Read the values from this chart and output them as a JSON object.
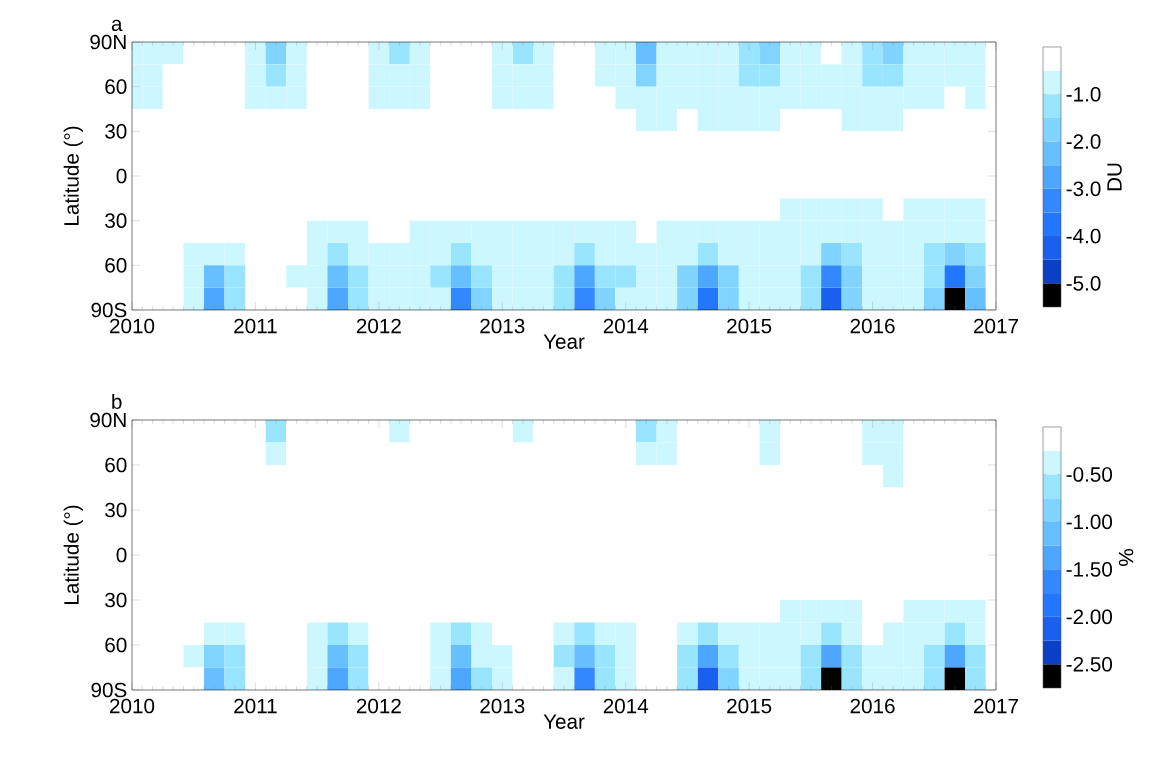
{
  "chart_data": [
    {
      "type": "heatmap",
      "title": "a",
      "xlabel": "Year",
      "ylabel": "Latitude (°)",
      "clabel": "DU",
      "x": [
        2010,
        2010.167,
        2010.333,
        2010.5,
        2010.667,
        2010.833,
        2011,
        2011.167,
        2011.333,
        2011.5,
        2011.667,
        2011.833,
        2012,
        2012.167,
        2012.333,
        2012.5,
        2012.667,
        2012.833,
        2013,
        2013.167,
        2013.333,
        2013.5,
        2013.667,
        2013.833,
        2014,
        2014.167,
        2014.333,
        2014.5,
        2014.667,
        2014.833,
        2015,
        2015.167,
        2015.333,
        2015.5,
        2015.667,
        2015.833,
        2016,
        2016.167,
        2016.333,
        2016.5,
        2016.667,
        2016.833
      ],
      "y": [
        82.5,
        67.5,
        52.5,
        37.5,
        22.5,
        7.5,
        -7.5,
        -22.5,
        -37.5,
        -52.5,
        -67.5,
        -82.5
      ],
      "cells": [
        [
          -0.75,
          -0.75,
          -0.75,
          -0.25,
          -0.25,
          -0.25,
          -0.75,
          -1.75,
          -0.75,
          -0.25,
          -0.25,
          -0.25,
          -0.75,
          -1.25,
          -0.75,
          -0.25,
          -0.25,
          -0.25,
          -0.75,
          -1.25,
          -0.75,
          -0.25,
          -0.25,
          -0.75,
          -0.75,
          -2.25,
          -0.75,
          -0.75,
          -0.75,
          -0.75,
          -1.25,
          -1.75,
          -0.75,
          -0.75,
          -0.25,
          -0.75,
          -1.25,
          -1.75,
          -0.75,
          -0.75,
          -0.75,
          -0.75
        ],
        [
          -0.75,
          -0.75,
          -0.25,
          -0.25,
          -0.25,
          -0.25,
          -0.75,
          -1.25,
          -0.75,
          -0.25,
          -0.25,
          -0.25,
          -0.75,
          -0.75,
          -0.75,
          -0.25,
          -0.25,
          -0.25,
          -0.75,
          -0.75,
          -0.75,
          -0.25,
          -0.25,
          -0.75,
          -0.75,
          -1.75,
          -0.75,
          -0.75,
          -0.75,
          -0.75,
          -1.25,
          -1.25,
          -0.75,
          -0.75,
          -0.75,
          -0.75,
          -1.25,
          -1.25,
          -0.75,
          -0.75,
          -0.75,
          -0.75
        ],
        [
          -0.75,
          -0.75,
          -0.25,
          -0.25,
          -0.25,
          -0.25,
          -0.75,
          -0.75,
          -0.75,
          -0.25,
          -0.25,
          -0.25,
          -0.75,
          -0.75,
          -0.75,
          -0.25,
          -0.25,
          -0.25,
          -0.75,
          -0.75,
          -0.75,
          -0.25,
          -0.25,
          -0.25,
          -0.75,
          -0.75,
          -0.75,
          -0.75,
          -0.75,
          -0.75,
          -0.75,
          -0.75,
          -0.75,
          -0.75,
          -0.75,
          -0.75,
          -0.75,
          -0.75,
          -0.75,
          -0.75,
          -0.25,
          -0.75
        ],
        [
          -0.25,
          -0.25,
          -0.25,
          -0.25,
          -0.25,
          -0.25,
          -0.25,
          -0.25,
          -0.25,
          -0.25,
          -0.25,
          -0.25,
          -0.25,
          -0.25,
          -0.25,
          -0.25,
          -0.25,
          -0.25,
          -0.25,
          -0.25,
          -0.25,
          -0.25,
          -0.25,
          -0.25,
          -0.25,
          -0.75,
          -0.75,
          -0.25,
          -0.75,
          -0.75,
          -0.75,
          -0.75,
          -0.25,
          -0.25,
          -0.25,
          -0.75,
          -0.75,
          -0.75,
          -0.25,
          -0.25,
          -0.25,
          -0.25
        ],
        [
          -0.25,
          -0.25,
          -0.25,
          -0.25,
          -0.25,
          -0.25,
          -0.25,
          -0.25,
          -0.25,
          -0.25,
          -0.25,
          -0.25,
          -0.25,
          -0.25,
          -0.25,
          -0.25,
          -0.25,
          -0.25,
          -0.25,
          -0.25,
          -0.25,
          -0.25,
          -0.25,
          -0.25,
          -0.25,
          -0.25,
          -0.25,
          -0.25,
          -0.25,
          -0.25,
          -0.25,
          -0.25,
          -0.25,
          -0.25,
          -0.25,
          -0.25,
          -0.25,
          -0.25,
          -0.25,
          -0.25,
          -0.25,
          -0.25
        ],
        [
          -0.25,
          -0.25,
          -0.25,
          -0.25,
          -0.25,
          -0.25,
          -0.25,
          -0.25,
          -0.25,
          -0.25,
          -0.25,
          -0.25,
          -0.25,
          -0.25,
          -0.25,
          -0.25,
          -0.25,
          -0.25,
          -0.25,
          -0.25,
          -0.25,
          -0.25,
          -0.25,
          -0.25,
          -0.25,
          -0.25,
          -0.25,
          -0.25,
          -0.25,
          -0.25,
          -0.25,
          -0.25,
          -0.25,
          -0.25,
          -0.25,
          -0.25,
          -0.25,
          -0.25,
          -0.25,
          -0.25,
          -0.25,
          -0.25
        ],
        [
          -0.25,
          -0.25,
          -0.25,
          -0.25,
          -0.25,
          -0.25,
          -0.25,
          -0.25,
          -0.25,
          -0.25,
          -0.25,
          -0.25,
          -0.25,
          -0.25,
          -0.25,
          -0.25,
          -0.25,
          -0.25,
          -0.25,
          -0.25,
          -0.25,
          -0.25,
          -0.25,
          -0.25,
          -0.25,
          -0.25,
          -0.25,
          -0.25,
          -0.25,
          -0.25,
          -0.25,
          -0.25,
          -0.25,
          -0.25,
          -0.25,
          -0.25,
          -0.25,
          -0.25,
          -0.25,
          -0.25,
          -0.25,
          -0.25
        ],
        [
          -0.25,
          -0.25,
          -0.25,
          -0.25,
          -0.25,
          -0.25,
          -0.25,
          -0.25,
          -0.25,
          -0.25,
          -0.25,
          -0.25,
          -0.25,
          -0.25,
          -0.25,
          -0.25,
          -0.25,
          -0.25,
          -0.25,
          -0.25,
          -0.25,
          -0.25,
          -0.25,
          -0.25,
          -0.25,
          -0.25,
          -0.25,
          -0.25,
          -0.25,
          -0.25,
          -0.25,
          -0.25,
          -0.75,
          -0.75,
          -0.75,
          -0.75,
          -0.75,
          -0.25,
          -0.75,
          -0.75,
          -0.75,
          -0.75
        ],
        [
          -0.25,
          -0.25,
          -0.25,
          -0.25,
          -0.25,
          -0.25,
          -0.25,
          -0.25,
          -0.25,
          -0.75,
          -0.75,
          -0.75,
          -0.25,
          -0.25,
          -0.75,
          -0.75,
          -0.75,
          -0.75,
          -0.75,
          -0.75,
          -0.75,
          -0.75,
          -0.75,
          -0.75,
          -0.75,
          -0.25,
          -0.75,
          -0.75,
          -0.75,
          -0.75,
          -0.75,
          -0.75,
          -0.75,
          -0.75,
          -0.75,
          -0.75,
          -0.75,
          -0.75,
          -0.75,
          -0.75,
          -0.75,
          -0.75
        ],
        [
          -0.25,
          -0.25,
          -0.25,
          -0.75,
          -0.75,
          -0.75,
          -0.25,
          -0.25,
          -0.25,
          -0.75,
          -1.25,
          -0.75,
          -0.75,
          -0.75,
          -0.75,
          -0.75,
          -1.25,
          -0.75,
          -0.75,
          -0.75,
          -0.75,
          -0.75,
          -1.25,
          -0.75,
          -0.75,
          -0.75,
          -0.75,
          -0.75,
          -1.25,
          -0.75,
          -0.75,
          -0.75,
          -0.75,
          -0.75,
          -1.75,
          -1.25,
          -0.75,
          -0.75,
          -0.75,
          -1.25,
          -1.75,
          -1.25
        ],
        [
          -0.25,
          -0.25,
          -0.25,
          -0.75,
          -2.25,
          -1.25,
          -0.25,
          -0.25,
          -0.75,
          -0.75,
          -2.25,
          -1.25,
          -0.75,
          -0.75,
          -0.75,
          -1.25,
          -2.25,
          -1.25,
          -0.75,
          -0.75,
          -0.75,
          -1.25,
          -2.75,
          -1.25,
          -1.25,
          -0.75,
          -0.75,
          -1.75,
          -2.75,
          -1.75,
          -0.75,
          -0.75,
          -0.75,
          -1.25,
          -3.25,
          -1.75,
          -0.75,
          -0.75,
          -0.75,
          -1.25,
          -3.75,
          -1.75
        ],
        [
          -0.25,
          -0.25,
          -0.25,
          -0.75,
          -2.75,
          -1.25,
          -0.25,
          -0.25,
          -0.25,
          -0.75,
          -2.75,
          -1.25,
          -0.75,
          -0.75,
          -0.75,
          -0.75,
          -3.25,
          -1.75,
          -0.75,
          -0.75,
          -0.75,
          -1.25,
          -3.25,
          -1.75,
          -0.75,
          -0.75,
          -0.75,
          -1.75,
          -3.75,
          -1.75,
          -0.75,
          -0.75,
          -0.75,
          -1.25,
          -4.25,
          -1.75,
          -0.75,
          -0.75,
          -0.75,
          -1.75,
          -5.2,
          -2.25
        ]
      ],
      "xlim": [
        2010,
        2017
      ],
      "xticks": [
        2010,
        2011,
        2012,
        2013,
        2014,
        2015,
        2016,
        2017
      ],
      "ylim": [
        -90,
        90
      ],
      "yticks": [
        {
          "value": -90,
          "label": "90S"
        },
        {
          "value": -60,
          "label": "60"
        },
        {
          "value": -30,
          "label": "30"
        },
        0,
        30,
        60,
        {
          "value": 90,
          "label": "90N"
        }
      ],
      "clim": [
        -5.5,
        0
      ],
      "cticks": [
        {
          "value": -5,
          "label": "-5.0"
        },
        {
          "value": -4,
          "label": "-4.0"
        },
        {
          "value": -3,
          "label": "-3.0"
        },
        {
          "value": -2,
          "label": "-2.0"
        },
        {
          "value": -1,
          "label": "-1.0"
        }
      ]
    },
    {
      "type": "heatmap",
      "title": "b",
      "xlabel": "Year",
      "ylabel": "Latitude (°)",
      "clabel": "%",
      "x": [
        2010,
        2010.167,
        2010.333,
        2010.5,
        2010.667,
        2010.833,
        2011,
        2011.167,
        2011.333,
        2011.5,
        2011.667,
        2011.833,
        2012,
        2012.167,
        2012.333,
        2012.5,
        2012.667,
        2012.833,
        2013,
        2013.167,
        2013.333,
        2013.5,
        2013.667,
        2013.833,
        2014,
        2014.167,
        2014.333,
        2014.5,
        2014.667,
        2014.833,
        2015,
        2015.167,
        2015.333,
        2015.5,
        2015.667,
        2015.833,
        2016,
        2016.167,
        2016.333,
        2016.5,
        2016.667,
        2016.833
      ],
      "y": [
        82.5,
        67.5,
        52.5,
        37.5,
        22.5,
        7.5,
        -7.5,
        -22.5,
        -37.5,
        -52.5,
        -67.5,
        -82.5
      ],
      "cells": [
        [
          -0.125,
          -0.125,
          -0.125,
          -0.125,
          -0.125,
          -0.125,
          -0.125,
          -0.625,
          -0.125,
          -0.125,
          -0.125,
          -0.125,
          -0.125,
          -0.375,
          -0.125,
          -0.125,
          -0.125,
          -0.125,
          -0.125,
          -0.375,
          -0.125,
          -0.125,
          -0.125,
          -0.125,
          -0.125,
          -0.625,
          -0.375,
          -0.125,
          -0.125,
          -0.125,
          -0.125,
          -0.375,
          -0.125,
          -0.125,
          -0.125,
          -0.125,
          -0.375,
          -0.375,
          -0.125,
          -0.125,
          -0.125,
          -0.125
        ],
        [
          -0.125,
          -0.125,
          -0.125,
          -0.125,
          -0.125,
          -0.125,
          -0.125,
          -0.375,
          -0.125,
          -0.125,
          -0.125,
          -0.125,
          -0.125,
          -0.125,
          -0.125,
          -0.125,
          -0.125,
          -0.125,
          -0.125,
          -0.125,
          -0.125,
          -0.125,
          -0.125,
          -0.125,
          -0.125,
          -0.375,
          -0.375,
          -0.125,
          -0.125,
          -0.125,
          -0.125,
          -0.375,
          -0.125,
          -0.125,
          -0.125,
          -0.125,
          -0.375,
          -0.375,
          -0.125,
          -0.125,
          -0.125,
          -0.125
        ],
        [
          -0.125,
          -0.125,
          -0.125,
          -0.125,
          -0.125,
          -0.125,
          -0.125,
          -0.125,
          -0.125,
          -0.125,
          -0.125,
          -0.125,
          -0.125,
          -0.125,
          -0.125,
          -0.125,
          -0.125,
          -0.125,
          -0.125,
          -0.125,
          -0.125,
          -0.125,
          -0.125,
          -0.125,
          -0.125,
          -0.125,
          -0.125,
          -0.125,
          -0.125,
          -0.125,
          -0.125,
          -0.125,
          -0.125,
          -0.125,
          -0.125,
          -0.125,
          -0.125,
          -0.375,
          -0.125,
          -0.125,
          -0.125,
          -0.125
        ],
        [
          -0.125,
          -0.125,
          -0.125,
          -0.125,
          -0.125,
          -0.125,
          -0.125,
          -0.125,
          -0.125,
          -0.125,
          -0.125,
          -0.125,
          -0.125,
          -0.125,
          -0.125,
          -0.125,
          -0.125,
          -0.125,
          -0.125,
          -0.125,
          -0.125,
          -0.125,
          -0.125,
          -0.125,
          -0.125,
          -0.125,
          -0.125,
          -0.125,
          -0.125,
          -0.125,
          -0.125,
          -0.125,
          -0.125,
          -0.125,
          -0.125,
          -0.125,
          -0.125,
          -0.125,
          -0.125,
          -0.125,
          -0.125,
          -0.125
        ],
        [
          -0.125,
          -0.125,
          -0.125,
          -0.125,
          -0.125,
          -0.125,
          -0.125,
          -0.125,
          -0.125,
          -0.125,
          -0.125,
          -0.125,
          -0.125,
          -0.125,
          -0.125,
          -0.125,
          -0.125,
          -0.125,
          -0.125,
          -0.125,
          -0.125,
          -0.125,
          -0.125,
          -0.125,
          -0.125,
          -0.125,
          -0.125,
          -0.125,
          -0.125,
          -0.125,
          -0.125,
          -0.125,
          -0.125,
          -0.125,
          -0.125,
          -0.125,
          -0.125,
          -0.125,
          -0.125,
          -0.125,
          -0.125,
          -0.125
        ],
        [
          -0.125,
          -0.125,
          -0.125,
          -0.125,
          -0.125,
          -0.125,
          -0.125,
          -0.125,
          -0.125,
          -0.125,
          -0.125,
          -0.125,
          -0.125,
          -0.125,
          -0.125,
          -0.125,
          -0.125,
          -0.125,
          -0.125,
          -0.125,
          -0.125,
          -0.125,
          -0.125,
          -0.125,
          -0.125,
          -0.125,
          -0.125,
          -0.125,
          -0.125,
          -0.125,
          -0.125,
          -0.125,
          -0.125,
          -0.125,
          -0.125,
          -0.125,
          -0.125,
          -0.125,
          -0.125,
          -0.125,
          -0.125,
          -0.125
        ],
        [
          -0.125,
          -0.125,
          -0.125,
          -0.125,
          -0.125,
          -0.125,
          -0.125,
          -0.125,
          -0.125,
          -0.125,
          -0.125,
          -0.125,
          -0.125,
          -0.125,
          -0.125,
          -0.125,
          -0.125,
          -0.125,
          -0.125,
          -0.125,
          -0.125,
          -0.125,
          -0.125,
          -0.125,
          -0.125,
          -0.125,
          -0.125,
          -0.125,
          -0.125,
          -0.125,
          -0.125,
          -0.125,
          -0.125,
          -0.125,
          -0.125,
          -0.125,
          -0.125,
          -0.125,
          -0.125,
          -0.125,
          -0.125,
          -0.125
        ],
        [
          -0.125,
          -0.125,
          -0.125,
          -0.125,
          -0.125,
          -0.125,
          -0.125,
          -0.125,
          -0.125,
          -0.125,
          -0.125,
          -0.125,
          -0.125,
          -0.125,
          -0.125,
          -0.125,
          -0.125,
          -0.125,
          -0.125,
          -0.125,
          -0.125,
          -0.125,
          -0.125,
          -0.125,
          -0.125,
          -0.125,
          -0.125,
          -0.125,
          -0.125,
          -0.125,
          -0.125,
          -0.125,
          -0.125,
          -0.125,
          -0.125,
          -0.125,
          -0.125,
          -0.125,
          -0.125,
          -0.125,
          -0.125,
          -0.125
        ],
        [
          -0.125,
          -0.125,
          -0.125,
          -0.125,
          -0.125,
          -0.125,
          -0.125,
          -0.125,
          -0.125,
          -0.125,
          -0.125,
          -0.125,
          -0.125,
          -0.125,
          -0.125,
          -0.125,
          -0.125,
          -0.125,
          -0.125,
          -0.125,
          -0.125,
          -0.125,
          -0.125,
          -0.125,
          -0.125,
          -0.125,
          -0.125,
          -0.125,
          -0.125,
          -0.125,
          -0.125,
          -0.125,
          -0.375,
          -0.375,
          -0.375,
          -0.375,
          -0.125,
          -0.125,
          -0.375,
          -0.375,
          -0.375,
          -0.375
        ],
        [
          -0.125,
          -0.125,
          -0.125,
          -0.125,
          -0.375,
          -0.375,
          -0.125,
          -0.125,
          -0.125,
          -0.375,
          -0.625,
          -0.375,
          -0.125,
          -0.125,
          -0.125,
          -0.375,
          -0.625,
          -0.375,
          -0.125,
          -0.125,
          -0.125,
          -0.375,
          -0.625,
          -0.375,
          -0.375,
          -0.125,
          -0.125,
          -0.375,
          -0.625,
          -0.375,
          -0.375,
          -0.375,
          -0.375,
          -0.375,
          -0.625,
          -0.375,
          -0.125,
          -0.375,
          -0.375,
          -0.375,
          -0.625,
          -0.375
        ],
        [
          -0.125,
          -0.125,
          -0.125,
          -0.375,
          -0.875,
          -0.625,
          -0.125,
          -0.125,
          -0.125,
          -0.375,
          -1.125,
          -0.625,
          -0.125,
          -0.125,
          -0.125,
          -0.375,
          -1.125,
          -0.375,
          -0.375,
          -0.125,
          -0.125,
          -0.625,
          -1.125,
          -0.625,
          -0.375,
          -0.125,
          -0.125,
          -0.625,
          -1.375,
          -0.625,
          -0.375,
          -0.375,
          -0.375,
          -0.625,
          -1.375,
          -0.625,
          -0.375,
          -0.375,
          -0.375,
          -0.625,
          -1.375,
          -0.625
        ],
        [
          -0.125,
          -0.125,
          -0.125,
          -0.125,
          -1.125,
          -0.625,
          -0.125,
          -0.125,
          -0.125,
          -0.375,
          -1.375,
          -0.625,
          -0.125,
          -0.125,
          -0.125,
          -0.375,
          -1.375,
          -0.625,
          -0.375,
          -0.125,
          -0.125,
          -0.375,
          -1.625,
          -0.625,
          -0.375,
          -0.125,
          -0.125,
          -0.625,
          -2.125,
          -0.875,
          -0.375,
          -0.375,
          -0.375,
          -0.625,
          -2.6,
          -0.625,
          -0.375,
          -0.375,
          -0.375,
          -0.625,
          -2.6,
          -0.625
        ]
      ],
      "xlim": [
        2010,
        2017
      ],
      "xticks": [
        2010,
        2011,
        2012,
        2013,
        2014,
        2015,
        2016,
        2017
      ],
      "ylim": [
        -90,
        90
      ],
      "yticks": [
        {
          "value": -90,
          "label": "90S"
        },
        {
          "value": -60,
          "label": "60"
        },
        {
          "value": -30,
          "label": "30"
        },
        0,
        30,
        60,
        {
          "value": 90,
          "label": "90N"
        }
      ],
      "clim": [
        -2.75,
        0
      ],
      "cticks": [
        {
          "value": -2.5,
          "label": "-2.50"
        },
        {
          "value": -2,
          "label": "-2.00"
        },
        {
          "value": -1.5,
          "label": "-1.50"
        },
        {
          "value": -1,
          "label": "-1.00"
        },
        {
          "value": -0.5,
          "label": "-0.50"
        }
      ]
    }
  ]
}
